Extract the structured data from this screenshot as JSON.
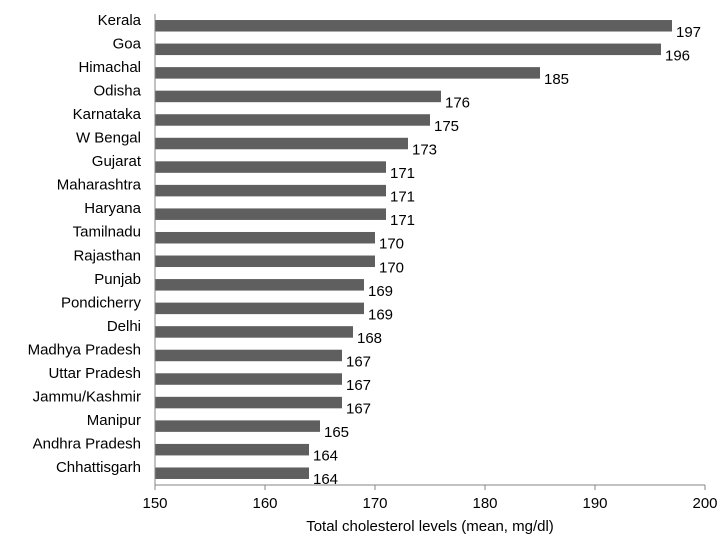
{
  "chart_data": {
    "type": "bar",
    "orientation": "horizontal",
    "title": "",
    "xlabel": "Total cholesterol levels (mean, mg/dl)",
    "ylabel": "",
    "xlim": [
      150,
      200
    ],
    "x_ticks": [
      150,
      160,
      170,
      180,
      190,
      200
    ],
    "grid": false,
    "legend": "none",
    "bar_color": "#5f5f5f",
    "categories": [
      "Kerala",
      "Goa",
      "Himachal",
      "Odisha",
      "Karnataka",
      "W Bengal",
      "Gujarat",
      "Maharashtra",
      "Haryana",
      "Tamilnadu",
      "Rajasthan",
      "Punjab",
      "Pondicherry",
      "Delhi",
      "Madhya Pradesh",
      "Uttar Pradesh",
      "Jammu/Kashmir",
      "Manipur",
      "Andhra Pradesh",
      "Chhattisgarh"
    ],
    "values": [
      197,
      196,
      185,
      176,
      175,
      173,
      171,
      171,
      171,
      170,
      170,
      169,
      169,
      168,
      167,
      167,
      167,
      165,
      164,
      164
    ]
  }
}
